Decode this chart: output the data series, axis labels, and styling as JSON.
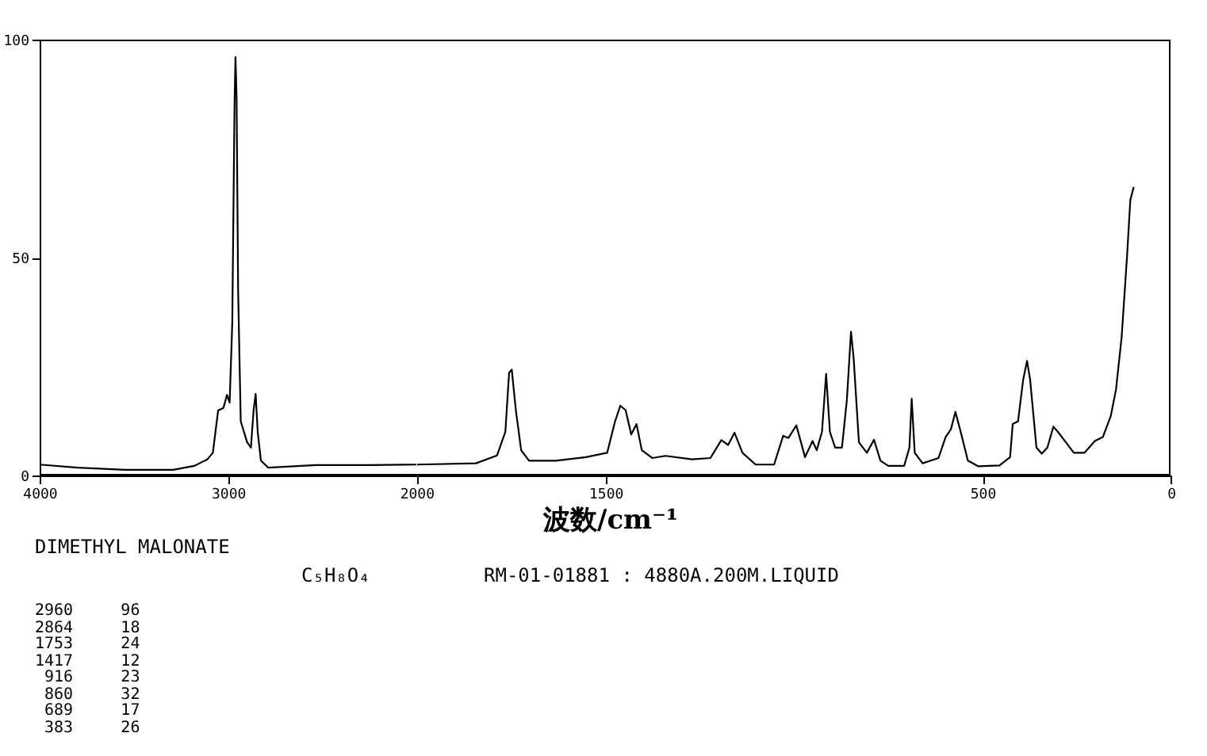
{
  "chart_data": [
    {
      "type": "line",
      "xlim": [
        4000,
        2000
      ],
      "xticks": [
        4000,
        3000,
        2000
      ],
      "ylim": [
        0,
        100
      ],
      "yticks": [
        0,
        50,
        100
      ],
      "grid": false,
      "marker": "none",
      "line_style": "solid",
      "series": [
        {
          "color": "#000000",
          "x": [
            4000,
            3798,
            3545,
            3292,
            3180,
            3110,
            3081,
            3053,
            3025,
            3006,
            2992,
            2978,
            2966,
            2961,
            2955,
            2947,
            2933,
            2899,
            2879,
            2865,
            2854,
            2843,
            2826,
            2787,
            2534,
            2253,
            2000
          ],
          "values": [
            2.5,
            1.8,
            1.3,
            1.3,
            2.2,
            3.7,
            5.2,
            14.9,
            15.5,
            18.5,
            16.7,
            35,
            85,
            96,
            86.7,
            42.6,
            12.4,
            7.6,
            6.4,
            14.9,
            18.7,
            10,
            3.4,
            1.8,
            2.4,
            2.4,
            2.5
          ]
        }
      ],
      "annotations": [
        "DIMETHYL MALONATE",
        "C₅H₈O₄",
        "RM-01-01881 : 4880A.200M.LIQUID",
        "2960     96",
        "2864     18",
        "1753     24",
        "1417     12",
        " 916     23",
        " 860     32",
        " 689     17",
        " 383     26"
      ]
    },
    {
      "type": "line",
      "xlabel": "波数/cm⁻¹",
      "xlim": [
        2000,
        0
      ],
      "xticks": [
        1500,
        500,
        0
      ],
      "ylim": [
        0,
        100
      ],
      "tick_labels": "x",
      "grid": false,
      "marker": "none",
      "line_style": "solid",
      "series": [
        {
          "color": "#000000",
          "x": [
            2000,
            1844,
            1788,
            1766,
            1756,
            1749,
            1738,
            1724,
            1703,
            1632,
            1552,
            1496,
            1475,
            1461,
            1447,
            1432,
            1418,
            1404,
            1376,
            1341,
            1271,
            1222,
            1193,
            1175,
            1158,
            1137,
            1102,
            1053,
            1029,
            1015,
            994,
            971,
            951,
            940,
            926,
            915,
            905,
            891,
            873,
            860,
            849,
            842,
            828,
            807,
            788,
            771,
            750,
            708,
            694,
            688,
            680,
            659,
            617,
            598,
            584,
            572,
            558,
            539,
            511,
            455,
            427,
            420,
            406,
            392,
            382,
            374,
            357,
            343,
            328,
            312,
            300,
            279,
            258,
            230,
            202,
            181,
            160,
            146,
            131,
            117,
            108,
            99
          ],
          "values": [
            2.5,
            2.8,
            4.6,
            10,
            23.6,
            24.3,
            14.9,
            5.8,
            3.4,
            3.4,
            4.2,
            5.2,
            12.4,
            16,
            15,
            9.4,
            11.8,
            5.8,
            4,
            4.5,
            3.7,
            4,
            8.1,
            7,
            9.8,
            5.2,
            2.5,
            2.5,
            9.1,
            8.6,
            11.5,
            4.2,
            7.9,
            5.8,
            10,
            23.3,
            10,
            6.4,
            6.4,
            17.3,
            33,
            26.9,
            7.6,
            5.2,
            8.2,
            3.4,
            2.2,
            2.2,
            6.4,
            17.6,
            5.2,
            2.8,
            4,
            8.8,
            10.6,
            14.6,
            10,
            3.4,
            2.1,
            2.3,
            4.2,
            11.8,
            12.4,
            22.1,
            26.3,
            22.1,
            6.4,
            5,
            6.4,
            11.2,
            10,
            7.6,
            5.2,
            5.2,
            7.9,
            8.8,
            13.6,
            19.7,
            31.8,
            49.9,
            63.2,
            66.2
          ]
        }
      ]
    }
  ]
}
